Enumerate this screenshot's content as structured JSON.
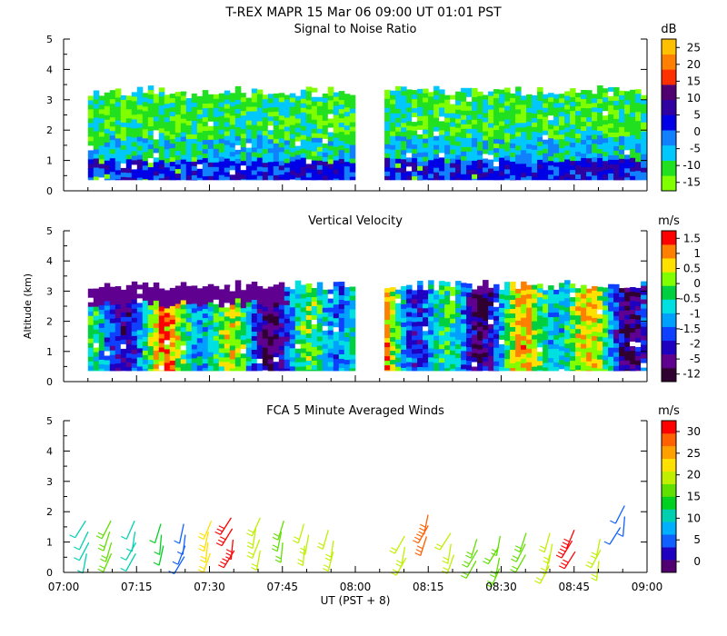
{
  "header": {
    "title": "T-REX   MAPR 15 Mar 06   09:00 UT   01:01   PST"
  },
  "colors": {
    "axis": "#000000",
    "gap": "#ffffff"
  },
  "chart_data": [
    {
      "type": "heatmap",
      "title": "Signal to Noise Ratio",
      "ylabel": "",
      "xlabel": "",
      "ylim": [
        0,
        5
      ],
      "yticks": [
        "0",
        "1",
        "2",
        "3",
        "4",
        "5"
      ],
      "x_range": [
        "07:00",
        "09:00"
      ],
      "data_gap": [
        "07:59",
        "08:06"
      ],
      "colorbar_units": "dB",
      "colorbar_labels": [
        "-15",
        "-10",
        "-5",
        "0",
        "5",
        "10",
        "15",
        "20",
        "25"
      ],
      "colorbar_colors": [
        "#80ff00",
        "#20e020",
        "#00c8ff",
        "#1080ff",
        "#0000e6",
        "#3000a0",
        "#500070",
        "#ff3000",
        "#ff8000",
        "#ffc000"
      ],
      "approx_echo_top_km": 3.3,
      "approx_echo_base_km": 0.35
    },
    {
      "type": "heatmap",
      "title": "Vertical Velocity",
      "ylabel": "Altitude (km)",
      "xlabel": "",
      "ylim": [
        0,
        5
      ],
      "yticks": [
        "0",
        "1",
        "2",
        "3",
        "4",
        "5"
      ],
      "x_range": [
        "07:00",
        "09:00"
      ],
      "data_gap": [
        "07:59",
        "08:06"
      ],
      "colorbar_units": "m/s",
      "colorbar_labels": [
        "-12",
        "-5",
        "-2",
        "-1.5",
        "-1",
        "-0.5",
        "0",
        "0.5",
        "1",
        "1.5"
      ],
      "colorbar_colors": [
        "#300030",
        "#600090",
        "#2000c0",
        "#1040ff",
        "#00a0ff",
        "#00e0e0",
        "#00d040",
        "#80ff00",
        "#ffe000",
        "#ff8000",
        "#ff0000"
      ],
      "approx_echo_top_km": 3.2,
      "approx_echo_base_km": 0.35
    },
    {
      "type": "wind-barbs",
      "title": "FCA 5 Minute Averaged Winds",
      "ylabel": "",
      "xlabel": "UT  (PST + 8)",
      "ylim": [
        0,
        5
      ],
      "yticks": [
        "0",
        "1",
        "2",
        "3",
        "4",
        "5"
      ],
      "xticks": [
        "07:00",
        "07:15",
        "07:30",
        "07:45",
        "08:00",
        "08:15",
        "08:30",
        "08:45",
        "09:00"
      ],
      "colorbar_units": "m/s",
      "colorbar_labels": [
        "0",
        "5",
        "10",
        "15",
        "20",
        "25",
        "30"
      ],
      "colorbar_colors": [
        "#500070",
        "#2000c0",
        "#1060ff",
        "#00b0ff",
        "#00d0b0",
        "#00d020",
        "#60e000",
        "#c0f000",
        "#ffe000",
        "#ffa000",
        "#ff6000",
        "#ff0000"
      ],
      "barb_times": [
        "07:05",
        "07:10",
        "07:15",
        "07:20",
        "07:25",
        "07:30",
        "07:35",
        "07:40",
        "07:45",
        "07:50",
        "07:55",
        "08:10",
        "08:15",
        "08:20",
        "08:25",
        "08:30",
        "08:35",
        "08:40",
        "08:45",
        "08:50",
        "08:55"
      ],
      "barb_heights_km": [
        1.7,
        1.7,
        1.7,
        1.6,
        1.6,
        1.7,
        1.8,
        1.8,
        1.7,
        1.6,
        1.4,
        1.2,
        1.9,
        1.3,
        1.1,
        1.2,
        1.3,
        1.3,
        1.4,
        1.1,
        2.2
      ],
      "barb_speeds_ms": [
        12,
        15,
        10,
        13,
        5,
        22,
        30,
        18,
        17,
        18,
        19,
        20,
        26,
        18,
        16,
        15,
        15,
        18,
        30,
        18,
        6
      ]
    }
  ]
}
